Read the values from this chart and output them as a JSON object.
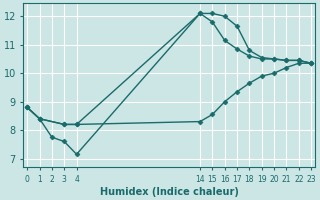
{
  "title": "",
  "xlabel": "Humidex (Indice chaleur)",
  "ylabel": "",
  "bg_color": "#cce5e5",
  "grid_color": "#ffffff",
  "line_color": "#1a6b6b",
  "line1": {
    "x": [
      0,
      1,
      2,
      3,
      4,
      14,
      15,
      16,
      17,
      18,
      19,
      20,
      21,
      22,
      23
    ],
    "y": [
      8.8,
      8.4,
      7.75,
      7.6,
      7.15,
      12.1,
      12.1,
      12.0,
      11.65,
      10.8,
      10.55,
      10.5,
      10.45,
      10.45,
      10.35
    ]
  },
  "line2": {
    "x": [
      0,
      1,
      3,
      4,
      14,
      15,
      16,
      17,
      18,
      19,
      20,
      21,
      22,
      23
    ],
    "y": [
      8.8,
      8.4,
      8.2,
      8.2,
      12.1,
      11.8,
      11.15,
      10.85,
      10.6,
      10.5,
      10.5,
      10.45,
      10.45,
      10.35
    ]
  },
  "line3": {
    "x": [
      0,
      1,
      3,
      4,
      14,
      15,
      16,
      17,
      18,
      19,
      20,
      21,
      22,
      23
    ],
    "y": [
      8.8,
      8.4,
      8.2,
      8.2,
      8.3,
      8.55,
      9.0,
      9.35,
      9.65,
      9.9,
      10.0,
      10.2,
      10.35,
      10.35
    ]
  },
  "xlim": [
    -0.3,
    23.3
  ],
  "ylim": [
    6.7,
    12.45
  ],
  "yticks": [
    7,
    8,
    9,
    10,
    11,
    12
  ],
  "xtick_positions": [
    0,
    1,
    2,
    3,
    4,
    14,
    15,
    16,
    17,
    18,
    19,
    20,
    21,
    22,
    23
  ],
  "xtick_labels": [
    "0",
    "1",
    "2",
    "3",
    "4",
    "14",
    "15",
    "16",
    "17",
    "18",
    "19",
    "20",
    "21",
    "22",
    "23"
  ],
  "marker": "D",
  "marker_size": 2.5,
  "linewidth": 1.0
}
